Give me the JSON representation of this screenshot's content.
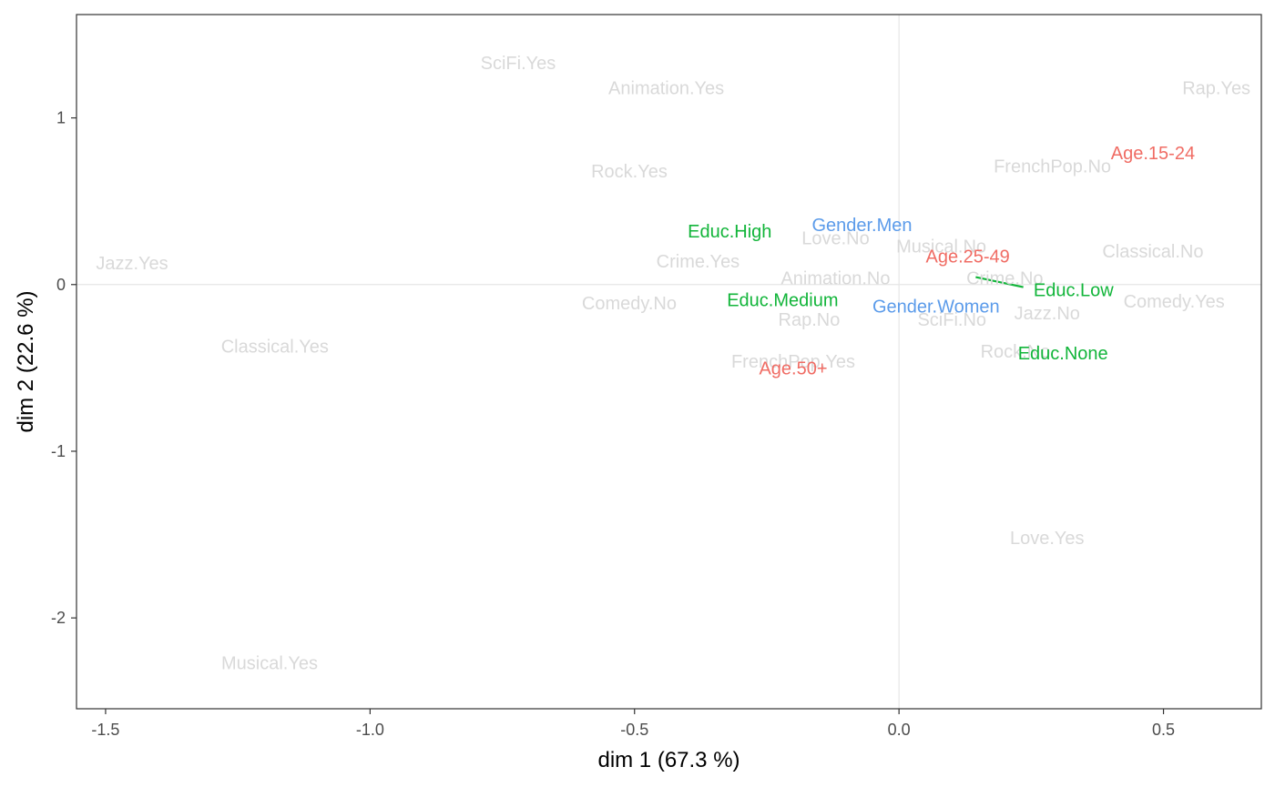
{
  "chart_data": {
    "type": "scatter",
    "xlabel": "dim 1 (67.3 %)",
    "ylabel": "dim 2 (22.6 %)",
    "xlim": [
      -1.555,
      0.685
    ],
    "ylim": [
      -2.545,
      1.62
    ],
    "x_ticks": [
      -1.5,
      -1.0,
      -0.5,
      0.0,
      0.5
    ],
    "x_tick_labels": [
      "-1.5",
      "-1.0",
      "-0.5",
      "0.0",
      "0.5"
    ],
    "y_ticks": [
      -2,
      -1,
      0,
      1
    ],
    "y_tick_labels": [
      "-2",
      "-1",
      "0",
      "1"
    ],
    "grid": false,
    "reference_lines": {
      "x": 0,
      "y": 0,
      "color": "#e6e6e6"
    },
    "colors": {
      "supplementary": "#d9d9d9",
      "Age": "#f06c64",
      "Educ": "#12b53a",
      "Gender": "#5b9bea"
    },
    "series": [
      {
        "group": "supplementary",
        "points": [
          {
            "label": "SciFi.Yes",
            "x": -0.72,
            "y": 1.33
          },
          {
            "label": "Animation.Yes",
            "x": -0.44,
            "y": 1.18
          },
          {
            "label": "Rap.Yes",
            "x": 0.6,
            "y": 1.18
          },
          {
            "label": "Rock.Yes",
            "x": -0.51,
            "y": 0.68
          },
          {
            "label": "FrenchPop.No",
            "x": 0.29,
            "y": 0.71
          },
          {
            "label": "Love.No",
            "x": -0.12,
            "y": 0.28
          },
          {
            "label": "Musical.No",
            "x": 0.08,
            "y": 0.23
          },
          {
            "label": "Classical.No",
            "x": 0.48,
            "y": 0.2
          },
          {
            "label": "Jazz.Yes",
            "x": -1.45,
            "y": 0.13
          },
          {
            "label": "Crime.Yes",
            "x": -0.38,
            "y": 0.14
          },
          {
            "label": "Animation.No",
            "x": -0.12,
            "y": 0.04
          },
          {
            "label": "Crime.No",
            "x": 0.2,
            "y": 0.04
          },
          {
            "label": "Comedy.No",
            "x": -0.51,
            "y": -0.11
          },
          {
            "label": "Comedy.Yes",
            "x": 0.52,
            "y": -0.1
          },
          {
            "label": "Jazz.No",
            "x": 0.28,
            "y": -0.17
          },
          {
            "label": "Rap.No",
            "x": -0.17,
            "y": -0.21
          },
          {
            "label": "SciFi.No",
            "x": 0.1,
            "y": -0.21
          },
          {
            "label": "Classical.Yes",
            "x": -1.18,
            "y": -0.37
          },
          {
            "label": "Rock.No",
            "x": 0.22,
            "y": -0.4
          },
          {
            "label": "FrenchPop.Yes",
            "x": -0.2,
            "y": -0.46
          },
          {
            "label": "Love.Yes",
            "x": 0.28,
            "y": -1.52
          },
          {
            "label": "Musical.Yes",
            "x": -1.19,
            "y": -2.27
          }
        ]
      },
      {
        "group": "Age",
        "points": [
          {
            "label": "Age.15-24",
            "x": 0.48,
            "y": 0.79
          },
          {
            "label": "Age.25-49",
            "x": 0.13,
            "y": 0.17
          },
          {
            "label": "Age.50+",
            "x": -0.2,
            "y": -0.5
          }
        ]
      },
      {
        "group": "Educ",
        "points": [
          {
            "label": "Educ.High",
            "x": -0.32,
            "y": 0.32
          },
          {
            "label": "Educ.Medium",
            "x": -0.22,
            "y": -0.09
          },
          {
            "label": "Educ.Low",
            "x": 0.33,
            "y": -0.03
          },
          {
            "label": "Educ.None",
            "x": 0.31,
            "y": -0.41
          }
        ]
      },
      {
        "group": "Gender",
        "points": [
          {
            "label": "Gender.Men",
            "x": -0.07,
            "y": 0.36
          },
          {
            "label": "Gender.Women",
            "x": 0.07,
            "y": -0.13
          }
        ]
      }
    ],
    "segments": [
      {
        "group": "Educ",
        "x1": 0.145,
        "y1": 0.045,
        "x2": 0.235,
        "y2": -0.015
      }
    ]
  }
}
